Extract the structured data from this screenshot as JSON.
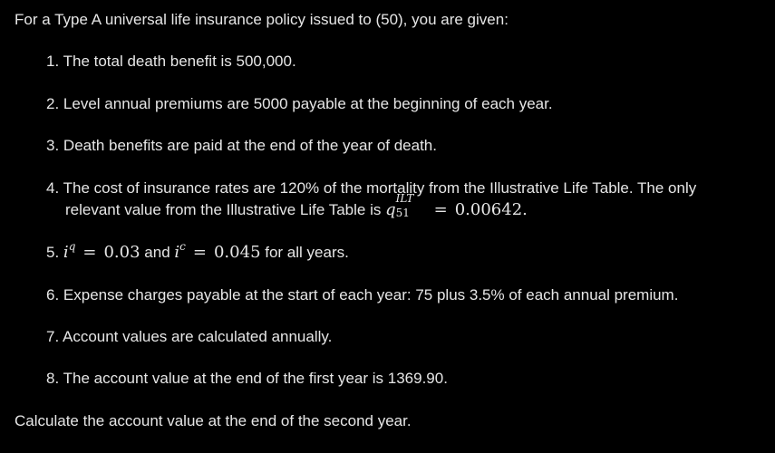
{
  "intro": "For a Type A universal life insurance policy issued to (50), you are given:",
  "items": [
    {
      "num": "1.",
      "text": "The total death benefit is 500,000."
    },
    {
      "num": "2.",
      "text": "Level annual premiums are 5000 payable at the beginning of each year."
    },
    {
      "num": "3.",
      "text": "Death benefits are paid at the end of the year of death."
    },
    {
      "num": "4.",
      "line1": "The cost of insurance rates are 120% of the mortality from the Illustrative Life Table. The only",
      "line2_prefix": "relevant value from the Illustrative Life Table is",
      "q_symbol": "q",
      "q_sup": "ILT",
      "q_sub": "51",
      "eq": "=",
      "q_value": "0.00642."
    },
    {
      "num": "5.",
      "i_symbol": "i",
      "sup_q": "q",
      "eq1": "=",
      "value1": "0.03",
      "and": "and",
      "sup_c": "c",
      "eq2": "=",
      "value2": "0.045",
      "suffix": "for all years."
    },
    {
      "num": "6.",
      "text": "Expense charges payable at the start of each year: 75 plus 3.5% of each annual premium."
    },
    {
      "num": "7.",
      "text": "Account values are calculated annually."
    },
    {
      "num": "8.",
      "text": "The account value at the end of the first year is 1369.90."
    }
  ],
  "outro": "Calculate the account value at the end of the second year.",
  "colors": {
    "background": "#000000",
    "text": "#e6e6e6"
  }
}
